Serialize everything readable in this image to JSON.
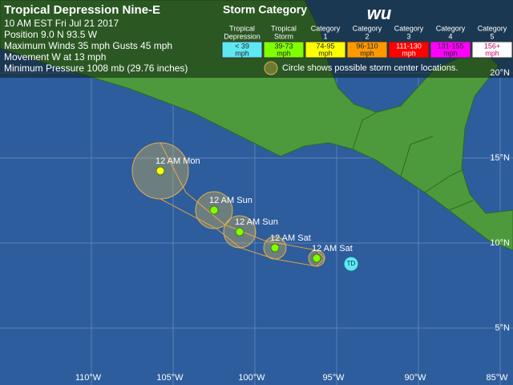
{
  "header": {
    "title": "Tropical Depression Nine-E",
    "lines": [
      "10 AM EST Fri Jul 21 2017",
      "Position 9.0 N 93.5 W",
      "Maximum Winds 35 mph  Gusts 45 mph",
      "Movement W at 13 mph",
      "Minimum Pressure 1008 mb (29.76 inches)"
    ]
  },
  "logo": "wu",
  "legend": {
    "title": "Storm Category",
    "categories": [
      {
        "name": [
          "Tropical",
          "Depression"
        ],
        "range": [
          "< 39",
          "mph"
        ],
        "color": "#5ee8f2"
      },
      {
        "name": [
          "Tropical",
          "Storm"
        ],
        "range": [
          "39-73",
          "mph"
        ],
        "color": "#80ff00"
      },
      {
        "name": [
          "Category",
          "1"
        ],
        "range": [
          "74-95",
          "mph"
        ],
        "color": "#ffff00"
      },
      {
        "name": [
          "Category",
          "2"
        ],
        "range": [
          "96-110",
          "mph"
        ],
        "color": "#ff9900"
      },
      {
        "name": [
          "Category",
          "3"
        ],
        "range": [
          "111-130",
          "mph"
        ],
        "color": "#ff0000"
      },
      {
        "name": [
          "Category",
          "4"
        ],
        "range": [
          "131-155",
          "mph"
        ],
        "color": "#ff00ff"
      },
      {
        "name": [
          "Category",
          "5"
        ],
        "range": [
          "156+",
          "mph"
        ],
        "color": "#ffffff"
      }
    ],
    "note": "Circle shows possible storm center locations."
  },
  "current_storm": {
    "label": "TD"
  },
  "forecast_points": [
    {
      "label": "12 AM Sat"
    },
    {
      "label": "12 AM Sat"
    },
    {
      "label": "12 AM Sun"
    },
    {
      "label": "12 AM Sun"
    },
    {
      "label": "12 AM Mon"
    }
  ],
  "longitude_labels": [
    "110°W",
    "105°W",
    "100°W",
    "95°W",
    "90°W",
    "85°W"
  ],
  "latitude_labels": [
    "20°N",
    "15°N",
    "10°N",
    "5°N"
  ]
}
